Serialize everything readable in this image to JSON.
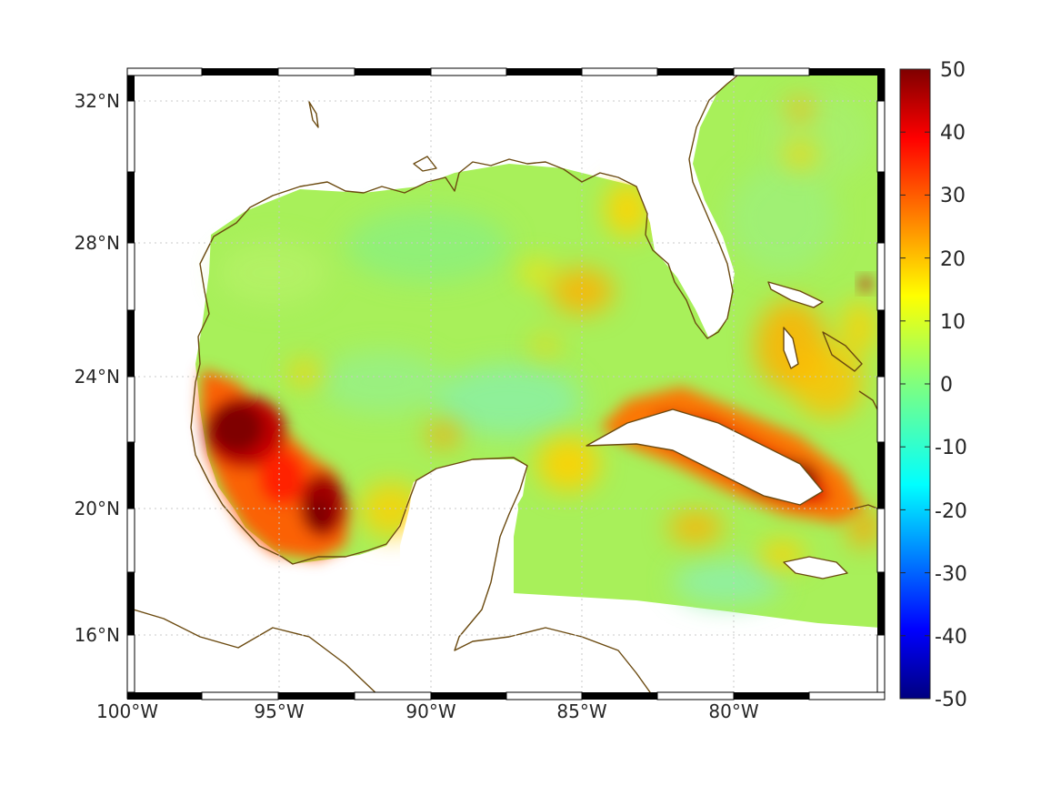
{
  "map": {
    "lon_labels": [
      "100°W",
      "95°W",
      "90°W",
      "85°W",
      "80°W"
    ],
    "lat_labels": [
      "32°N",
      "28°N",
      "24°N",
      "20°N",
      "16°N"
    ],
    "colorbar": {
      "labels": [
        "50",
        "40",
        "30",
        "20",
        "10",
        "0",
        "-10",
        "-20",
        "-30",
        "-40",
        "-50"
      ],
      "min": -50,
      "max": 50,
      "colormap": "jet"
    },
    "colors": {
      "coastline": "#6b4a10",
      "ocean_base": "#a8f05a",
      "land": "#ffffff"
    }
  }
}
